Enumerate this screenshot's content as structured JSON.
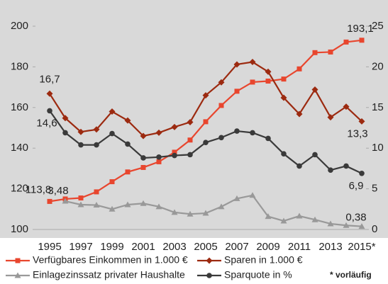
{
  "chart_data": {
    "type": "line",
    "categories": [
      "1995",
      null,
      "1997",
      null,
      "1999",
      null,
      "2001",
      null,
      "2003",
      null,
      "2005",
      null,
      "2007",
      null,
      "2009",
      null,
      "2011",
      null,
      "2013",
      null,
      "2015*"
    ],
    "ylim": [
      100,
      200
    ],
    "yticks": [
      100,
      120,
      140,
      160,
      180,
      200
    ],
    "y2lim": [
      0,
      25
    ],
    "y2ticks": [
      0,
      5,
      10,
      15,
      20,
      25
    ],
    "annotation": "* vorläufig",
    "series": [
      {
        "name": "Verfügbares Einkommen in 1.000 €",
        "color": "#e8462e",
        "marker": "square",
        "axis": "y",
        "values": [
          113.8,
          115,
          115.5,
          118.5,
          123.5,
          128.3,
          130.5,
          133.3,
          138,
          144,
          153,
          161,
          168,
          172.5,
          173,
          174,
          179,
          187,
          187.3,
          192.2,
          193.1
        ],
        "value_labels": [
          "113,8",
          null,
          null,
          null,
          null,
          null,
          null,
          null,
          null,
          null,
          null,
          null,
          null,
          null,
          null,
          null,
          null,
          null,
          null,
          null,
          "193,1"
        ]
      },
      {
        "name": "Sparen in 1.000 €",
        "color": "#9c2a10",
        "marker": "diamond",
        "axis": "y2",
        "values": [
          16.7,
          13.7,
          12.0,
          12.3,
          14.5,
          13.4,
          11.5,
          11.9,
          12.6,
          13.2,
          16.5,
          18.1,
          20.3,
          20.6,
          19.4,
          16.2,
          14.2,
          17.2,
          13.8,
          15.1,
          13.3
        ],
        "value_labels": [
          "16,7",
          null,
          null,
          null,
          null,
          null,
          null,
          null,
          null,
          null,
          null,
          null,
          null,
          null,
          null,
          null,
          null,
          null,
          null,
          null,
          "13,3"
        ]
      },
      {
        "name": "Einlagezinssatz privater Haushalte",
        "color": "#999999",
        "marker": "triangle",
        "axis": "y2",
        "values": [
          null,
          3.48,
          3.05,
          3.0,
          2.5,
          3.05,
          3.2,
          2.8,
          2.1,
          1.9,
          2.0,
          2.8,
          3.8,
          4.2,
          1.6,
          1.05,
          1.65,
          1.2,
          0.7,
          0.5,
          0.38
        ],
        "value_labels": [
          null,
          "3,48",
          null,
          null,
          null,
          null,
          null,
          null,
          null,
          null,
          null,
          null,
          null,
          null,
          null,
          null,
          null,
          null,
          null,
          null,
          "0,38"
        ]
      },
      {
        "name": "Sparquote in %",
        "color": "#3a3a3a",
        "marker": "circle",
        "axis": "y2",
        "values": [
          14.6,
          11.9,
          10.4,
          10.4,
          11.8,
          10.5,
          8.8,
          8.9,
          9.1,
          9.2,
          10.7,
          11.3,
          12.1,
          11.9,
          11.2,
          9.3,
          7.8,
          9.2,
          7.3,
          7.8,
          6.9
        ],
        "value_labels": [
          "14,6",
          null,
          null,
          null,
          null,
          null,
          null,
          null,
          null,
          null,
          null,
          null,
          null,
          null,
          null,
          null,
          null,
          null,
          null,
          null,
          "6,9"
        ]
      }
    ]
  }
}
